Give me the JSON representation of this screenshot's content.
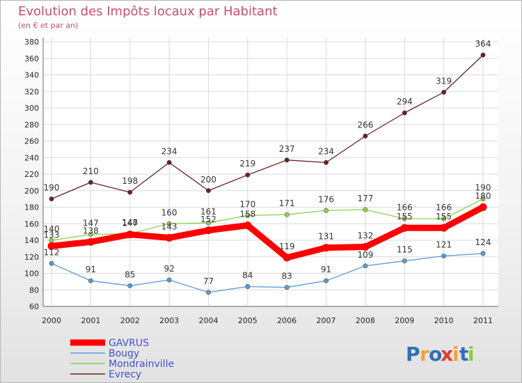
{
  "chart_data": {
    "type": "line",
    "title": "Evolution des Impôts locaux par Habitant",
    "subtitle": "(en € et par an)",
    "x": [
      2000,
      2001,
      2002,
      2003,
      2004,
      2005,
      2006,
      2007,
      2008,
      2009,
      2010,
      2011
    ],
    "ylim": [
      60,
      380
    ],
    "ystep": 20,
    "grid": true,
    "legend_position": "bottom-left",
    "series": [
      {
        "name": "GAVRUS",
        "color": "#ff0000",
        "values": [
          133,
          138,
          147,
          143,
          152,
          158,
          119,
          131,
          132,
          155,
          155,
          180
        ]
      },
      {
        "name": "Bougy",
        "color": "#5b9bd5",
        "values": [
          112,
          91,
          85,
          92,
          77,
          84,
          83,
          91,
          109,
          115,
          121,
          124
        ]
      },
      {
        "name": "Mondrainville",
        "color": "#92d050",
        "values": [
          140,
          147,
          148,
          160,
          161,
          170,
          171,
          176,
          177,
          166,
          166,
          190
        ]
      },
      {
        "name": "Evrecy",
        "color": "#6b1f1f",
        "values": [
          190,
          210,
          198,
          234,
          200,
          219,
          237,
          234,
          266,
          294,
          319,
          364
        ]
      }
    ]
  },
  "logo": {
    "letters": [
      "P",
      "r",
      "o",
      "x",
      "i",
      "t",
      "i"
    ],
    "colors": [
      "#2e6fb5",
      "#f3a23a",
      "#2e6fb5",
      "#e23a2a",
      "#f3a23a",
      "#2e6fb5",
      "#92c83e"
    ]
  }
}
